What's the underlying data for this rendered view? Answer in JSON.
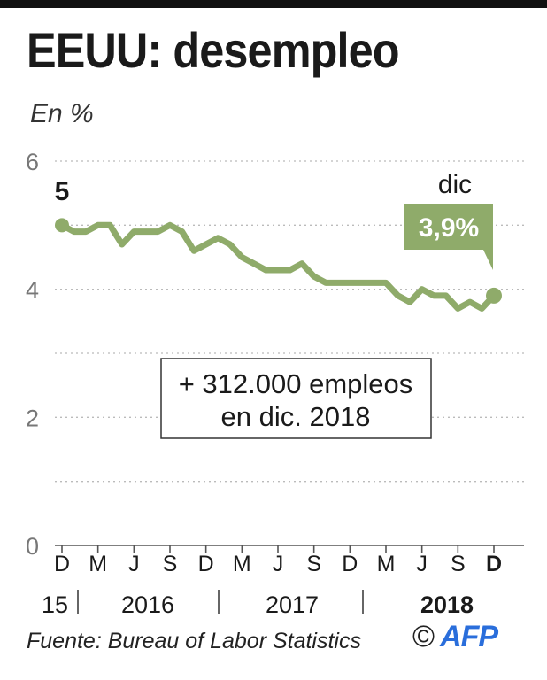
{
  "title": "EEUU: desempleo",
  "unit_label": "En %",
  "source": "Fuente: Bureau of Labor Statistics",
  "logo": {
    "copyright": "©",
    "brand": "AFP"
  },
  "colors": {
    "line": "#8fab6a",
    "grid": "#bbbbbb",
    "axis": "#555555",
    "text": "#1a1a1a",
    "logo": "#2a6edb"
  },
  "chart_data": {
    "type": "line",
    "title": "EEUU: desempleo",
    "ylabel": "En %",
    "ylim": [
      0,
      6
    ],
    "yticks": [
      0,
      2,
      4,
      6
    ],
    "grid": true,
    "month_ticks": [
      "D",
      "M",
      "J",
      "S",
      "D",
      "M",
      "J",
      "S",
      "D",
      "M",
      "J",
      "S",
      "D"
    ],
    "year_labels": [
      "15",
      "2016",
      "2017",
      "2018"
    ],
    "series": [
      {
        "x": [
          "2015-12",
          "2016-01",
          "2016-02",
          "2016-03",
          "2016-04",
          "2016-05",
          "2016-06",
          "2016-07",
          "2016-08",
          "2016-09",
          "2016-10",
          "2016-11",
          "2016-12",
          "2017-01",
          "2017-02",
          "2017-03",
          "2017-04",
          "2017-05",
          "2017-06",
          "2017-07",
          "2017-08",
          "2017-09",
          "2017-10",
          "2017-11",
          "2017-12",
          "2018-01",
          "2018-02",
          "2018-03",
          "2018-04",
          "2018-05",
          "2018-06",
          "2018-07",
          "2018-08",
          "2018-09",
          "2018-10",
          "2018-11",
          "2018-12"
        ],
        "values": [
          5.0,
          4.9,
          4.9,
          5.0,
          5.0,
          4.7,
          4.9,
          4.9,
          4.9,
          5.0,
          4.9,
          4.6,
          4.7,
          4.8,
          4.7,
          4.5,
          4.4,
          4.3,
          4.3,
          4.3,
          4.4,
          4.2,
          4.1,
          4.1,
          4.1,
          4.1,
          4.1,
          4.1,
          3.9,
          3.8,
          4.0,
          3.9,
          3.9,
          3.7,
          3.8,
          3.7,
          3.9
        ]
      }
    ],
    "annotations": {
      "start_value": "5",
      "end_month": "dic",
      "end_value": "3,9%",
      "note_line1": "+ 312.000 empleos",
      "note_line2": "en dic. 2018"
    }
  }
}
